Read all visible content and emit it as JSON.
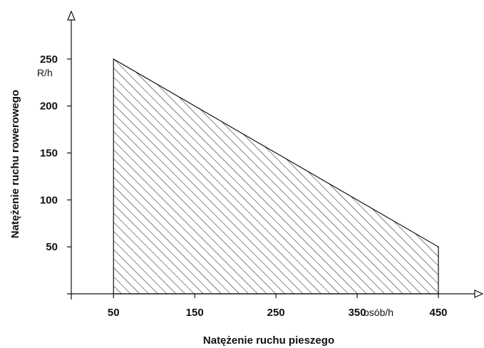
{
  "chart_data": {
    "type": "area",
    "fill_pattern": "diagonal-hatch",
    "x": [
      50,
      450
    ],
    "y": [
      250,
      50
    ],
    "x_ticks": [
      50,
      150,
      250,
      350,
      450
    ],
    "x_tick_labels": [
      "50",
      "150",
      "250",
      "350",
      "450"
    ],
    "y_ticks": [
      50,
      100,
      150,
      200,
      250
    ],
    "y_tick_labels": [
      "50",
      "100",
      "150",
      "200",
      "250"
    ],
    "xlabel": "Natężenie ruchu pieszego",
    "ylabel": "Natężenie ruchu rowerowego",
    "x_unit": "osób/h",
    "y_unit": "R/h",
    "xlim": [
      -2,
      500
    ],
    "ylim": [
      0,
      300
    ],
    "grid": false,
    "colors": {
      "line": "#111111",
      "hatch": "#111111",
      "background": "#ffffff"
    }
  }
}
